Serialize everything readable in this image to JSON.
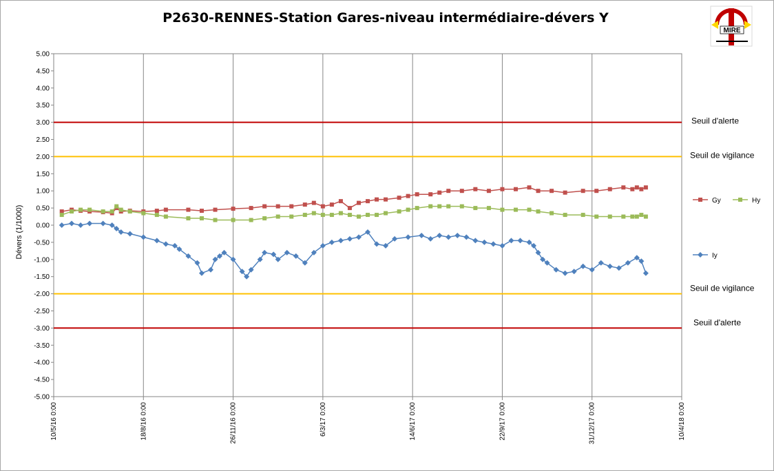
{
  "chart_data": {
    "type": "line",
    "title": "P2630-RENNES-Station Gares-niveau intermédiaire-dévers Y",
    "xlabel": "",
    "ylabel": "Dévers (1/1000)",
    "ylim": [
      -5,
      5
    ],
    "ytick_step": 0.5,
    "x_ticks": [
      "10/5/16 0:00",
      "18/8/16 0:00",
      "26/11/16 0:00",
      "6/3/17 0:00",
      "14/6/17 0:00",
      "22/9/17 0:00",
      "31/12/17 0:00",
      "10/4/18 0:00"
    ],
    "x_tick_days": [
      0,
      100,
      200,
      300,
      400,
      500,
      600,
      700
    ],
    "xlim_days": [
      0,
      700
    ],
    "grid": true,
    "thresholds": [
      {
        "name": "Seuil d'alerte",
        "value": 3.0,
        "color": "#c00000"
      },
      {
        "name": "Seuil de vigilance",
        "value": 2.0,
        "color": "#ffc000"
      },
      {
        "name": "Seuil de vigilance",
        "value": -2.0,
        "color": "#ffc000"
      },
      {
        "name": "Seuil d'alerte",
        "value": -3.0,
        "color": "#c00000"
      }
    ],
    "series": [
      {
        "name": "Gy",
        "color": "#c0504d",
        "marker": "square",
        "x": [
          9,
          20,
          30,
          40,
          55,
          65,
          70,
          75,
          85,
          100,
          115,
          125,
          150,
          165,
          180,
          200,
          220,
          235,
          250,
          265,
          280,
          290,
          300,
          310,
          320,
          330,
          340,
          350,
          360,
          370,
          385,
          395,
          405,
          420,
          430,
          440,
          455,
          470,
          485,
          500,
          515,
          530,
          540,
          555,
          570,
          590,
          605,
          620,
          635,
          645,
          650,
          655,
          660
        ],
        "values": [
          0.4,
          0.45,
          0.42,
          0.4,
          0.38,
          0.35,
          0.5,
          0.4,
          0.42,
          0.4,
          0.42,
          0.45,
          0.45,
          0.42,
          0.45,
          0.48,
          0.5,
          0.55,
          0.55,
          0.55,
          0.6,
          0.65,
          0.55,
          0.6,
          0.7,
          0.5,
          0.65,
          0.7,
          0.75,
          0.75,
          0.8,
          0.85,
          0.9,
          0.9,
          0.95,
          1.0,
          1.0,
          1.05,
          1.0,
          1.05,
          1.05,
          1.1,
          1.0,
          1.0,
          0.95,
          1.0,
          1.0,
          1.05,
          1.1,
          1.05,
          1.1,
          1.05,
          1.1
        ]
      },
      {
        "name": "Hy",
        "color": "#9bbb59",
        "marker": "square",
        "x": [
          9,
          20,
          30,
          40,
          55,
          65,
          70,
          75,
          85,
          100,
          115,
          125,
          150,
          165,
          180,
          200,
          220,
          235,
          250,
          265,
          280,
          290,
          300,
          310,
          320,
          330,
          340,
          350,
          360,
          370,
          385,
          395,
          405,
          420,
          430,
          440,
          455,
          470,
          485,
          500,
          515,
          530,
          540,
          555,
          570,
          590,
          605,
          620,
          635,
          645,
          650,
          655,
          660
        ],
        "values": [
          0.3,
          0.4,
          0.45,
          0.45,
          0.4,
          0.4,
          0.55,
          0.45,
          0.4,
          0.35,
          0.3,
          0.25,
          0.2,
          0.2,
          0.15,
          0.15,
          0.15,
          0.2,
          0.25,
          0.25,
          0.3,
          0.35,
          0.3,
          0.3,
          0.35,
          0.3,
          0.25,
          0.3,
          0.3,
          0.35,
          0.4,
          0.45,
          0.5,
          0.55,
          0.55,
          0.55,
          0.55,
          0.5,
          0.5,
          0.45,
          0.45,
          0.45,
          0.4,
          0.35,
          0.3,
          0.3,
          0.25,
          0.25,
          0.25,
          0.25,
          0.25,
          0.3,
          0.25
        ]
      },
      {
        "name": "Iy",
        "color": "#4f81bd",
        "marker": "diamond",
        "x": [
          9,
          20,
          30,
          40,
          55,
          65,
          70,
          75,
          85,
          100,
          115,
          125,
          135,
          140,
          150,
          160,
          165,
          175,
          180,
          185,
          190,
          200,
          210,
          215,
          220,
          230,
          235,
          245,
          250,
          260,
          270,
          280,
          290,
          300,
          310,
          320,
          330,
          340,
          350,
          360,
          370,
          380,
          395,
          410,
          420,
          430,
          440,
          450,
          460,
          470,
          480,
          490,
          500,
          510,
          520,
          530,
          535,
          540,
          545,
          550,
          560,
          570,
          580,
          590,
          600,
          610,
          620,
          630,
          640,
          650,
          655,
          660
        ],
        "values": [
          0.0,
          0.05,
          0.0,
          0.05,
          0.05,
          0.0,
          -0.1,
          -0.2,
          -0.25,
          -0.35,
          -0.45,
          -0.55,
          -0.6,
          -0.7,
          -0.9,
          -1.1,
          -1.4,
          -1.3,
          -1.0,
          -0.9,
          -0.8,
          -1.0,
          -1.35,
          -1.5,
          -1.3,
          -1.0,
          -0.8,
          -0.85,
          -1.0,
          -0.8,
          -0.9,
          -1.1,
          -0.8,
          -0.6,
          -0.5,
          -0.45,
          -0.4,
          -0.35,
          -0.2,
          -0.55,
          -0.6,
          -0.4,
          -0.35,
          -0.3,
          -0.4,
          -0.3,
          -0.35,
          -0.3,
          -0.35,
          -0.45,
          -0.5,
          -0.55,
          -0.6,
          -0.45,
          -0.45,
          -0.5,
          -0.6,
          -0.8,
          -1.0,
          -1.1,
          -1.3,
          -1.4,
          -1.35,
          -1.2,
          -1.3,
          -1.1,
          -1.2,
          -1.25,
          -1.1,
          -0.95,
          -1.05,
          -1.4
        ]
      }
    ],
    "legend": [
      {
        "name": "Gy",
        "color": "#c0504d",
        "marker": "square"
      },
      {
        "name": "Hy",
        "color": "#9bbb59",
        "marker": "square"
      },
      {
        "name": "Iy",
        "color": "#4f81bd",
        "marker": "diamond"
      }
    ]
  },
  "logo": {
    "text": "MIRE"
  }
}
